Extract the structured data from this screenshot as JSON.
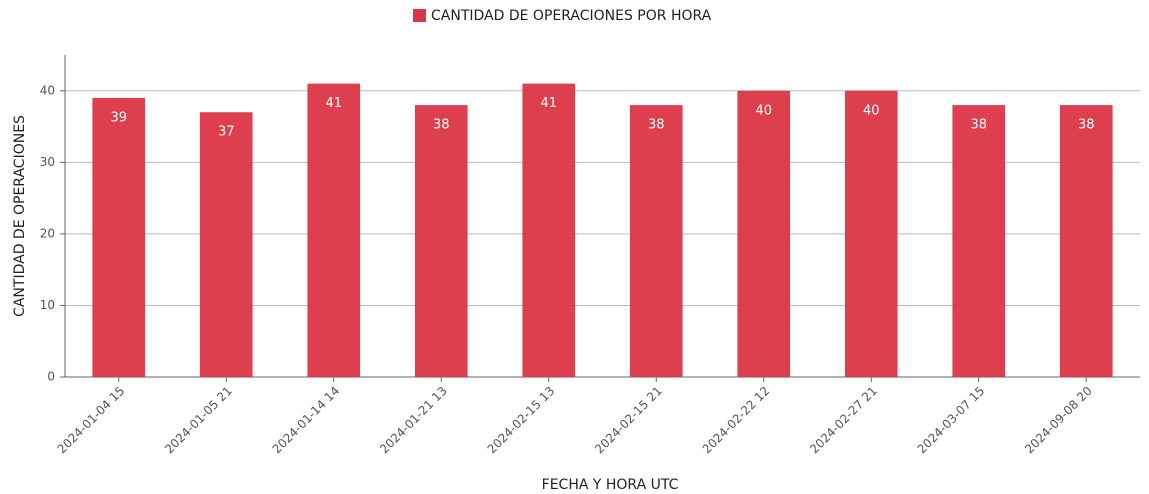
{
  "chart_data": {
    "type": "bar",
    "xlabel": "FECHA Y HORA UTC",
    "ylabel": "CANTIDAD DE OPERACIONES",
    "categories": [
      "2024-01-04 15",
      "2024-01-05 21",
      "2024-01-14 14",
      "2024-01-21 13",
      "2024-02-15 13",
      "2024-02-15 21",
      "2024-02-22 12",
      "2024-02-27 21",
      "2024-03-07 15",
      "2024-09-08 20"
    ],
    "series": [
      {
        "name": "CANTIDAD DE OPERACIONES POR HORA",
        "color": "#dc3545",
        "values": [
          39,
          37,
          41,
          38,
          41,
          38,
          40,
          40,
          38,
          38
        ]
      }
    ],
    "ylim": [
      0,
      45
    ],
    "yticks": [
      0,
      10,
      20,
      30,
      40
    ],
    "grid": true,
    "legend": "top"
  }
}
